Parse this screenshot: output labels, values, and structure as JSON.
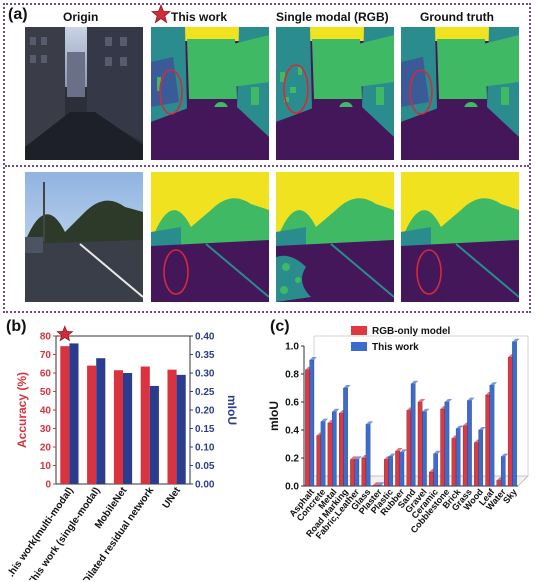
{
  "panel_labels": {
    "a": "(a)",
    "b": "(b)",
    "c": "(c)"
  },
  "panel_a": {
    "column_titles": [
      "Origin",
      "This work",
      "Single modal (RGB)",
      "Ground truth"
    ]
  },
  "colors": {
    "frame": "#6b4aa5",
    "seg_purple": "#44165a",
    "seg_teal": "#2a8c8c",
    "seg_green": "#3fb963",
    "seg_yellow": "#f1e21f",
    "seg_blue": "#3a5b97",
    "highlight_circle": "#d42a3a",
    "star": "#d42a3a",
    "accuracy_bar": "#d9333f",
    "miou_bar": "#2b3c8f",
    "rgb_only_bar": "#e0383f",
    "this_work_bar": "#3d6ccf"
  },
  "chart_data": [
    {
      "type": "bar",
      "panel": "(b)",
      "categories": [
        "This work (multi-modal)",
        "This work (single-modal)",
        "MobileNet",
        "Dilated residual network",
        "UNet"
      ],
      "category_labels_visible": [
        ".his work(multi-modal)",
        "This work (single-modal)",
        "MobileNet",
        "Dilated  residual network",
        "UNet"
      ],
      "series": [
        {
          "name": "Accuracy (%)",
          "axis": "left",
          "values": [
            74.5,
            64.0,
            61.5,
            63.5,
            61.8
          ]
        },
        {
          "name": "mIoU",
          "axis": "right",
          "values": [
            0.38,
            0.34,
            0.3,
            0.265,
            0.295
          ]
        }
      ],
      "ylabel": "Accuracy (%)",
      "ylim": [
        0,
        80
      ],
      "yticks": [
        "0",
        "10",
        "20",
        "30",
        "40",
        "50",
        "60",
        "70",
        "80"
      ],
      "y2label": "mIoU",
      "y2lim": [
        0,
        0.4
      ],
      "y2ticks": [
        "0.00",
        "0.05",
        "0.10",
        "0.15",
        "0.20",
        "0.25",
        "0.30",
        "0.35",
        "0.40"
      ],
      "marker": "star above This work (multi-modal)"
    },
    {
      "type": "bar",
      "panel": "(c)",
      "categories": [
        "Asphalt",
        "Concrete",
        "Metal",
        "Road Marking",
        "Fabric,Leather",
        "Glass",
        "Plaster",
        "Plastic",
        "Rubber",
        "Sand",
        "Gravel",
        "Ceramic",
        "Cobblestone",
        "Brick",
        "Grass",
        "Wood",
        "Leaf",
        "Water",
        "Sky"
      ],
      "series": [
        {
          "name": "RGB-only model",
          "values": [
            0.83,
            0.36,
            0.45,
            0.52,
            0.19,
            0.2,
            0.0,
            0.19,
            0.25,
            0.54,
            0.6,
            0.1,
            0.55,
            0.34,
            0.43,
            0.31,
            0.65,
            0.04,
            0.92
          ]
        },
        {
          "name": "This work",
          "values": [
            0.9,
            0.46,
            0.53,
            0.7,
            0.19,
            0.44,
            0.0,
            0.21,
            0.24,
            0.73,
            0.53,
            0.23,
            0.6,
            0.41,
            0.61,
            0.4,
            0.72,
            0.21,
            1.03
          ]
        }
      ],
      "ylabel": "mIoU",
      "ylim": [
        0,
        1.0
      ],
      "yticks": [
        "0.0",
        "0.2",
        "0.4",
        "0.6",
        "0.8",
        "1.0"
      ],
      "legend_position": "top-left"
    }
  ]
}
